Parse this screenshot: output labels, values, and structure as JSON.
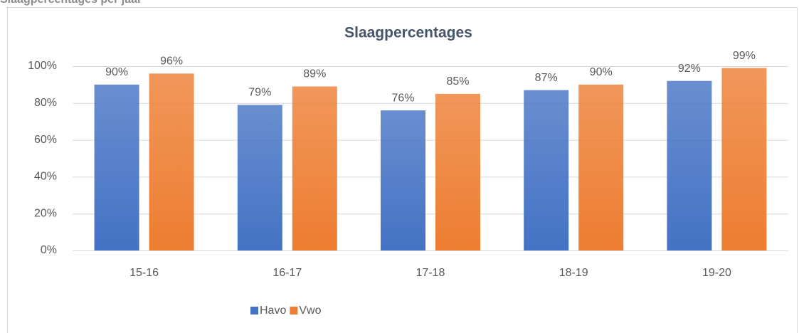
{
  "heading": "Slaagpercentages per jaar",
  "chart_data": {
    "type": "bar",
    "title": "Slaagpercentages",
    "categories": [
      "15-16",
      "16-17",
      "17-18",
      "18-19",
      "19-20"
    ],
    "series": [
      {
        "name": "Havo",
        "color": "#4472c4",
        "values": [
          90,
          79,
          76,
          87,
          92
        ],
        "value_labels": [
          "90%",
          "79%",
          "76%",
          "87%",
          "92%"
        ]
      },
      {
        "name": "Vwo",
        "color": "#ed7d31",
        "values": [
          96,
          89,
          85,
          90,
          99
        ],
        "value_labels": [
          "96%",
          "89%",
          "85%",
          "90%",
          "99%"
        ]
      }
    ],
    "ylim": [
      0,
      100
    ],
    "yticks": [
      {
        "value": 0,
        "label": "0%"
      },
      {
        "value": 20,
        "label": "20%"
      },
      {
        "value": 40,
        "label": "40%"
      },
      {
        "value": 60,
        "label": "60%"
      },
      {
        "value": 80,
        "label": "80%"
      },
      {
        "value": 100,
        "label": "100%"
      }
    ],
    "grid": true,
    "legend": "bottom"
  }
}
